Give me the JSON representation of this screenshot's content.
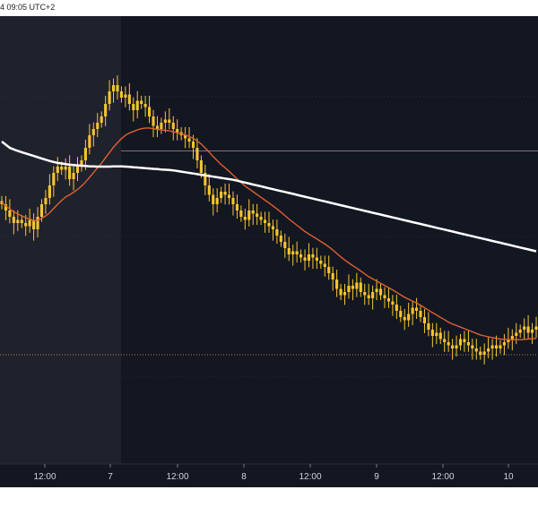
{
  "header": {
    "timestamp": "4 09:05 UTC+2"
  },
  "colors": {
    "background": "#131722",
    "shaded_session": "#1e222d",
    "candle": "#f7c531",
    "ma_long": "#ffffff",
    "ma_short": "#e0602f",
    "level_line": "#8a6f6f",
    "dotted_level": "#b8862a"
  },
  "chart_data": {
    "type": "candlestick",
    "x_ticks": [
      "12:00",
      "7",
      "12:00",
      "8",
      "12:00",
      "9",
      "12:00",
      "10"
    ],
    "price_range": [
      0,
      100
    ],
    "closes": [
      60,
      58,
      56,
      54,
      55,
      54,
      53,
      55,
      52,
      56,
      60,
      62,
      66,
      70,
      72,
      71,
      72,
      68,
      70,
      72,
      74,
      78,
      82,
      84,
      86,
      88,
      92,
      96,
      98,
      96,
      94,
      95,
      92,
      90,
      93,
      92,
      91,
      88,
      85,
      84,
      86,
      87,
      86,
      84,
      83,
      82,
      81,
      80,
      78,
      74,
      70,
      66,
      63,
      60,
      62,
      64,
      63,
      62,
      60,
      58,
      56,
      55,
      58,
      57,
      56,
      55,
      54,
      53,
      52,
      50,
      48,
      46,
      44,
      45,
      44,
      43,
      42,
      44,
      43,
      42,
      41,
      40,
      38,
      36,
      33,
      31,
      32,
      34,
      33,
      35,
      32,
      31,
      30,
      32,
      33,
      31,
      30,
      29,
      28,
      26,
      24,
      23,
      25,
      27,
      26,
      24,
      22,
      20,
      18,
      19,
      17,
      16,
      15,
      14,
      15,
      17,
      16,
      15,
      14,
      13,
      12,
      13,
      14,
      15,
      14,
      15,
      16,
      17,
      18,
      19,
      20,
      21,
      19,
      20,
      21
    ],
    "ma_long": [
      80,
      79,
      78,
      77.5,
      77,
      76.6,
      76.2,
      75.8,
      75.4,
      75,
      74.6,
      74.2,
      73.8,
      73.5,
      73.2,
      73,
      72.8,
      72.6,
      72.5,
      72.4,
      72.3,
      72.2,
      72.1,
      72.1,
      72,
      72,
      72,
      72,
      72.1,
      72.1,
      72.1,
      72,
      71.9,
      71.8,
      71.7,
      71.6,
      71.5,
      71.4,
      71.3,
      71.2,
      71.1,
      71,
      70.9,
      70.8,
      70.6,
      70.4,
      70.2,
      70,
      69.8,
      69.6,
      69.4,
      69.2,
      69,
      68.8,
      68.6,
      68.4,
      68.2,
      68,
      67.8,
      67.5,
      67.2,
      66.9,
      66.6,
      66.3,
      66,
      65.7,
      65.4,
      65.1,
      64.8,
      64.5,
      64.2,
      63.9,
      63.6,
      63.3,
      63,
      62.7,
      62.4,
      62.1,
      61.8,
      61.5,
      61.2,
      60.9,
      60.6,
      60.3,
      60,
      59.7,
      59.4,
      59.1,
      58.8,
      58.5,
      58.2,
      57.9,
      57.6,
      57.3,
      57,
      56.7,
      56.4,
      56.1,
      55.8,
      55.5,
      55.2,
      54.9,
      54.6,
      54.3,
      54,
      53.7,
      53.4,
      53.1,
      52.8,
      52.5,
      52.2,
      51.9,
      51.6,
      51.3,
      51,
      50.7,
      50.4,
      50.1,
      49.8,
      49.5,
      49.2,
      48.9,
      48.6,
      48.3,
      48,
      47.7,
      47.4,
      47.1,
      46.8,
      46.5,
      46.2,
      45.9,
      45.6,
      45.3,
      45
    ],
    "ma_short": [
      60.5,
      59.5,
      58.5,
      57.6,
      56.9,
      56.3,
      55.7,
      55.3,
      54.8,
      54.9,
      55.5,
      56.3,
      57.3,
      58.6,
      60,
      61.2,
      62.3,
      63,
      63.8,
      64.7,
      65.8,
      67.1,
      68.6,
      70.1,
      71.6,
      73.1,
      74.8,
      76.5,
      78.2,
      79.6,
      80.9,
      82,
      82.7,
      83.2,
      83.7,
      84.1,
      84.3,
      84.3,
      84.1,
      83.9,
      83.7,
      83.6,
      83.4,
      83.1,
      82.8,
      82.5,
      82.1,
      81.6,
      81,
      80.2,
      79.2,
      77.9,
      76.6,
      75.2,
      73.9,
      72.7,
      71.6,
      70.5,
      69.3,
      68.1,
      66.9,
      65.8,
      64.9,
      64,
      63.1,
      62.2,
      61.3,
      60.4,
      59.5,
      58.5,
      57.5,
      56.4,
      55.3,
      54.3,
      53.3,
      52.3,
      51.3,
      50.5,
      49.7,
      48.9,
      48.1,
      47.3,
      46.4,
      45.4,
      44.3,
      43.2,
      42.2,
      41.3,
      40.4,
      39.6,
      38.7,
      37.8,
      36.9,
      36.2,
      35.5,
      34.8,
      34.1,
      33.4,
      32.7,
      31.9,
      31.1,
      30.3,
      29.7,
      29.1,
      28.5,
      27.8,
      27,
      26.2,
      25.4,
      24.7,
      23.9,
      23.2,
      22.4,
      21.8,
      21.3,
      20.8,
      20.3,
      19.8,
      19.3,
      18.8,
      18.3,
      18,
      17.7,
      17.5,
      17.2,
      17,
      16.9,
      16.8,
      16.8,
      16.8,
      16.8,
      16.9,
      17,
      17.1,
      17.2
    ],
    "level_value": 77,
    "dotted_level_value": 12
  }
}
